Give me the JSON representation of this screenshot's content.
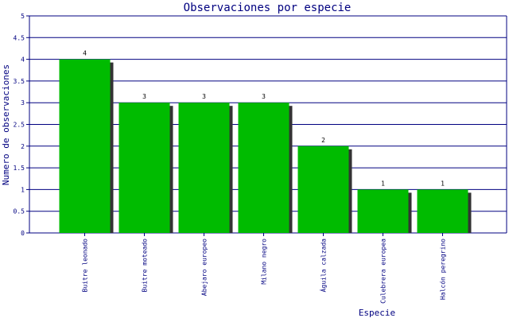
{
  "chart_data": {
    "type": "bar",
    "title": "Observaciones por especie",
    "xlabel": "Especie",
    "ylabel": "Numero de observaciones",
    "categories": [
      "Buitre leonado",
      "Buitre moteado",
      "Abejaro europeo",
      "Milano negro",
      "Águila calzada",
      "Culebrera europea",
      "Halcón peregrino"
    ],
    "values": [
      4,
      3,
      3,
      3,
      2,
      1,
      1
    ],
    "data_labels": [
      "4",
      "3",
      "3",
      "3",
      "2",
      "1",
      "1"
    ],
    "ylim": [
      0,
      5
    ],
    "yticks": [
      "0",
      "0.5",
      "1",
      "1.5",
      "2",
      "2.5",
      "3",
      "3.5",
      "4",
      "4.5",
      "5"
    ],
    "grid": true,
    "colors": {
      "bar": "#00bb00",
      "shadow": "#333333",
      "grid": "#000080",
      "axis": "#000080",
      "text": "#000080"
    }
  }
}
